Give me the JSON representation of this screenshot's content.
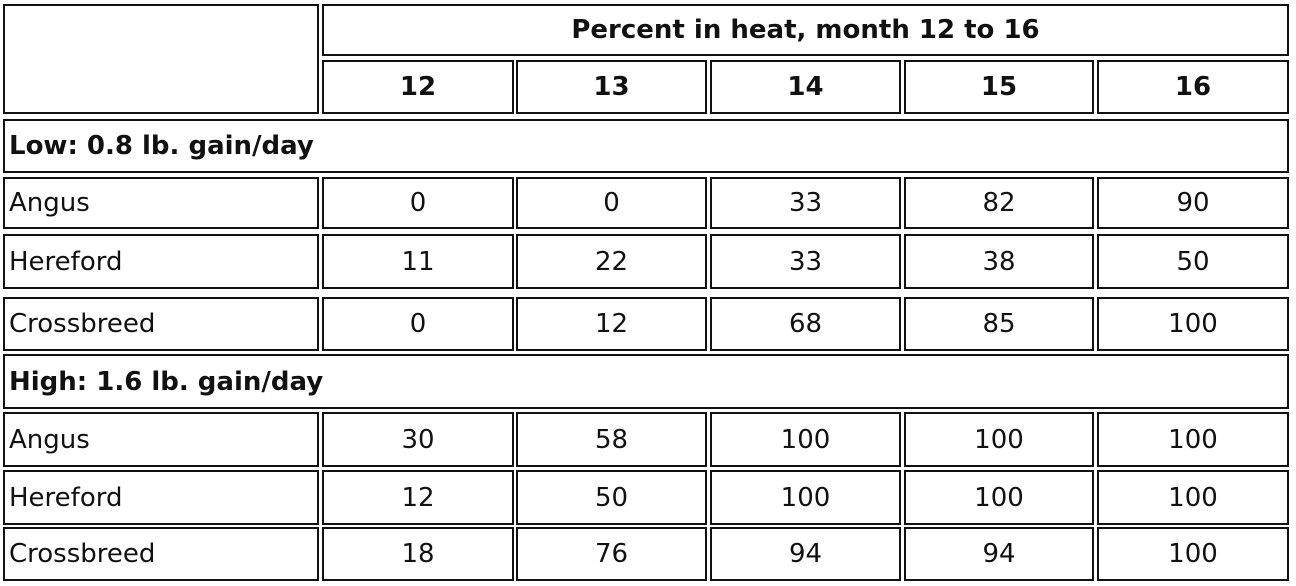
{
  "table": {
    "title": "Percent in heat, month 12 to 16",
    "columns": [
      12,
      13,
      14,
      15,
      16
    ],
    "groups": [
      {
        "label": "Low: 0.8 lb. gain/day",
        "rows": [
          {
            "breed": "Angus",
            "values": [
              0,
              0,
              33,
              82,
              90
            ]
          },
          {
            "breed": "Hereford",
            "values": [
              11,
              22,
              33,
              38,
              50
            ]
          },
          {
            "breed": "Crossbreed",
            "values": [
              0,
              12,
              68,
              85,
              100
            ]
          }
        ]
      },
      {
        "label": "High: 1.6 lb. gain/day",
        "rows": [
          {
            "breed": "Angus",
            "values": [
              30,
              58,
              100,
              100,
              100
            ]
          },
          {
            "breed": "Hereford",
            "values": [
              12,
              50,
              100,
              100,
              100
            ]
          },
          {
            "breed": "Crossbreed",
            "values": [
              18,
              76,
              94,
              94,
              100
            ]
          }
        ]
      }
    ]
  }
}
